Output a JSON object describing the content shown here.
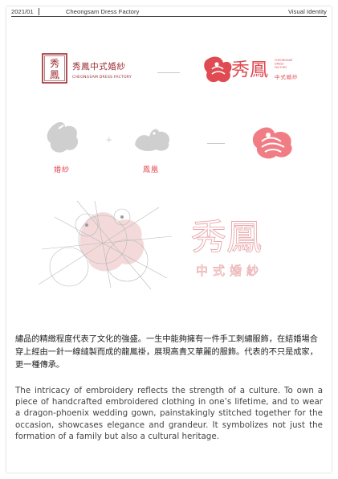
{
  "header": {
    "date": "2021/01",
    "title": "Cheongsam Dress Factory",
    "section": "Visual Identity"
  },
  "old_logo": {
    "seal_text": "秀鳳",
    "name": "秀鳳中式婚紗",
    "subtitle": "CHEONGSAM DRESS FACTORY"
  },
  "new_logo": {
    "name": "秀鳳",
    "tag_en": [
      "CHEONGSAM",
      "DRESS",
      "FACTORY"
    ],
    "tag_zh": "中式婚紗"
  },
  "concept": {
    "left_caption": "婚紗",
    "right_caption": "鳳凰"
  },
  "construction": {
    "name": "秀鳳",
    "tag": "中式婚紗"
  },
  "body": {
    "zh": "繡品的精緻程度代表了文化的強盛。一生中能夠擁有一件手工刺繡服飾，在結婚場合穿上經由一針一線縫製而成的龍鳳褂，展現高貴又華麗的服飾。代表的不只是成家，更一種傳承。",
    "en": "The intricacy of embroidery reflects the strength of a culture. To own a piece of handcrafted embroidered clothing in one’s lifetime, and to wear a dragon-phoenix wedding gown, painstakingly stitched together for the occasion, showcases elegance and grandeur. It symbolizes not just the formation of a family but also a cultural heritage."
  },
  "colors": {
    "brand_red": "#e04a52",
    "brand_pink": "#f07d84",
    "seal_red": "#9b2a2e",
    "grey_shape": "#cfcfcf",
    "pale_pink": "#f3d9da"
  }
}
